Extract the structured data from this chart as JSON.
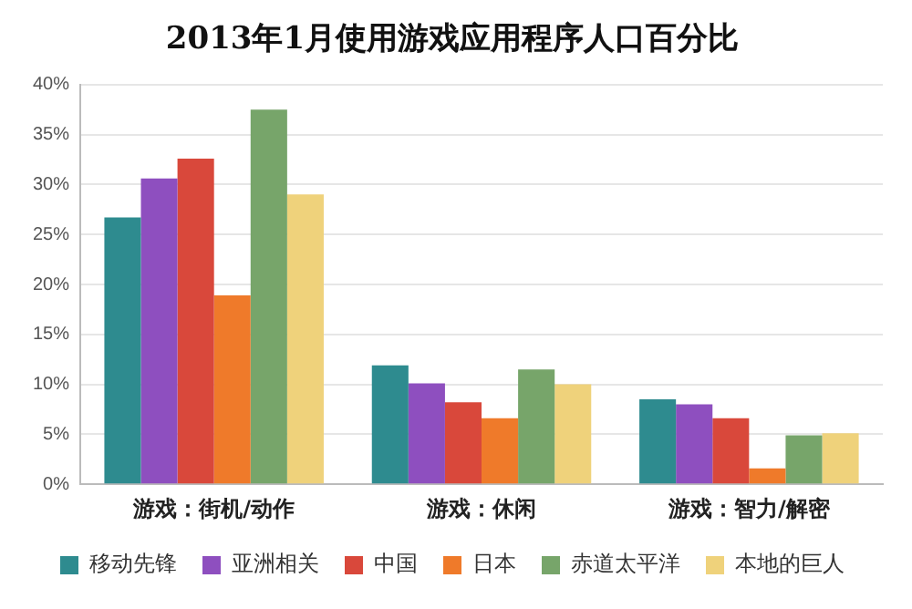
{
  "chart_data": {
    "type": "bar",
    "title": "2013年1月使用游戏应用程序人口百分比",
    "categories": [
      "游戏：街机/动作",
      "游戏：休闲",
      "游戏：智力/解密"
    ],
    "series": [
      {
        "name": "移动先锋",
        "color": "#2e8b8f",
        "values": [
          26.7,
          11.9,
          8.5
        ]
      },
      {
        "name": "亚洲相关",
        "color": "#8e4fbf",
        "values": [
          30.6,
          10.1,
          8.0
        ]
      },
      {
        "name": "中国",
        "color": "#d9483b",
        "values": [
          32.6,
          8.2,
          6.6
        ]
      },
      {
        "name": "日本",
        "color": "#ef7a2a",
        "values": [
          18.9,
          6.6,
          1.6
        ]
      },
      {
        "name": "赤道太平洋",
        "color": "#77a56a",
        "values": [
          37.5,
          11.5,
          4.9
        ]
      },
      {
        "name": "本地的巨人",
        "color": "#efd27b",
        "values": [
          29.0,
          10.0,
          5.1
        ]
      }
    ],
    "ylim": [
      0,
      40
    ],
    "yticks": [
      {
        "value": 0,
        "label": "0%"
      },
      {
        "value": 5,
        "label": "5%"
      },
      {
        "value": 10,
        "label": "10%"
      },
      {
        "value": 15,
        "label": "15%"
      },
      {
        "value": 20,
        "label": "20%"
      },
      {
        "value": 25,
        "label": "25%"
      },
      {
        "value": 30,
        "label": "30%"
      },
      {
        "value": 35,
        "label": "35%"
      },
      {
        "value": 40,
        "label": "40%"
      }
    ],
    "grid": "y",
    "legend": "bottom"
  }
}
